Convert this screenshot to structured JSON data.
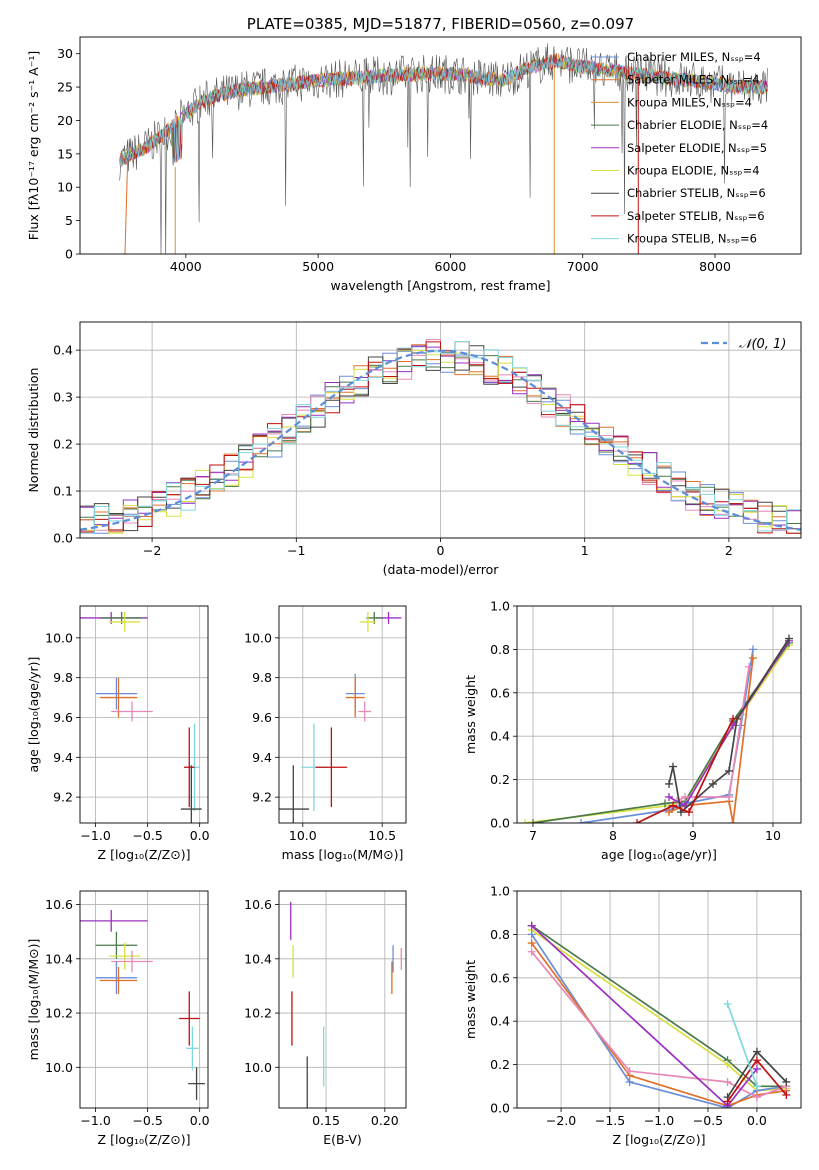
{
  "colors": {
    "chabrier_miles": "#6a8fd8",
    "salpeter_miles": "#e0702a",
    "kroupa_miles": "#d7902c",
    "chabrier_elodie": "#4a7a4a",
    "salpeter_elodie": "#9b30c0",
    "kroupa_elodie": "#d8e040",
    "chabrier_stelib": "#444444",
    "salpeter_stelib": "#c01010",
    "kroupa_stelib": "#80d8e0",
    "pink": "#e888b8",
    "normal_curve": "#5b8dd9"
  },
  "chart_data": [
    {
      "id": "spectrum",
      "type": "line",
      "title": "PLATE=0385, MJD=51877, FIBERID=0560, z=0.097",
      "xlabel": "wavelength [Angstrom, rest frame]",
      "ylabel": "Flux [fλ10⁻¹⁷ erg cm⁻² s⁻¹ A⁻¹]",
      "xlim": [
        3200,
        8650
      ],
      "ylim": [
        0,
        32.5
      ],
      "xticks": [
        "4000",
        "5000",
        "6000",
        "7000",
        "8000"
      ],
      "xtick_values": [
        4000,
        5000,
        6000,
        7000,
        8000
      ],
      "yticks": [
        "0",
        "5",
        "10",
        "15",
        "20",
        "25",
        "30"
      ],
      "ytick_values": [
        0,
        5,
        10,
        15,
        20,
        25,
        30
      ],
      "grid": false,
      "legend_position": "right",
      "legend": [
        "Chabrier MILES, Nₛₛₚ=4",
        "Salpeter MILES, Nₛₛₚ=4",
        "Kroupa MILES, Nₛₛₚ=4",
        "Chabrier ELODIE, Nₛₛₚ=4",
        "Salpeter ELODIE, Nₛₛₚ=5",
        "Kroupa ELODIE, Nₛₛₚ=4",
        "Chabrier STELIB, Nₛₛₚ=6",
        "Salpeter STELIB, Nₛₛₚ=6",
        "Kroupa STELIB, Nₛₛₚ=6"
      ],
      "continuum": {
        "x": [
          3500,
          3600,
          3700,
          3800,
          3900,
          4000,
          4100,
          4200,
          4400,
          4600,
          4800,
          5000,
          5200,
          5500,
          5800,
          6000,
          6200,
          6400,
          6600,
          6800,
          7000,
          7200,
          7400,
          7600,
          7800,
          8000,
          8200,
          8400
        ],
        "y": [
          14,
          15,
          16,
          17.5,
          19,
          21,
          22.5,
          23.5,
          24.5,
          25,
          25.5,
          26,
          26.3,
          26.7,
          27,
          27,
          26.5,
          26,
          28,
          29,
          28,
          27.5,
          27,
          26.5,
          26,
          25.5,
          25,
          25
        ]
      }
    },
    {
      "id": "residuals",
      "type": "histogram",
      "xlabel": "(data-model)/error",
      "ylabel": "Normed distribution",
      "xlim": [
        -2.5,
        2.5
      ],
      "ylim": [
        0,
        0.46
      ],
      "xticks": [
        "−2",
        "−1",
        "0",
        "1",
        "2"
      ],
      "xtick_values": [
        -2,
        -1,
        0,
        1,
        2
      ],
      "yticks": [
        "0.0",
        "0.1",
        "0.2",
        "0.3",
        "0.4"
      ],
      "ytick_values": [
        0,
        0.1,
        0.2,
        0.3,
        0.4
      ],
      "grid": true,
      "legend_position": "top-right",
      "legend": [
        "𝒩(0, 1)"
      ],
      "normal": {
        "mean": 0,
        "sigma": 1
      }
    },
    {
      "id": "age_vs_Z",
      "type": "scatter",
      "xlabel": "Z [log₁₀(Z/Z⊙)]",
      "ylabel": "age  [log₁₀(age/yr)]",
      "xlim": [
        -1.15,
        0.08
      ],
      "ylim": [
        9.07,
        10.16
      ],
      "xticks": [
        "−1.0",
        "−0.5",
        "0.0"
      ],
      "xtick_values": [
        -1.0,
        -0.5,
        0.0
      ],
      "yticks": [
        "9.2",
        "9.4",
        "9.6",
        "9.8",
        "10.0"
      ],
      "ytick_values": [
        9.2,
        9.4,
        9.6,
        9.8,
        10.0
      ],
      "grid": true,
      "points": [
        {
          "c": "salpeter_elodie",
          "x": -0.85,
          "y": 10.1,
          "xerr": 0.35,
          "yerr": 0.03
        },
        {
          "c": "chabrier_elodie",
          "x": -0.75,
          "y": 10.1,
          "xerr": 0.2,
          "yerr": 0.03
        },
        {
          "c": "kroupa_elodie",
          "x": -0.72,
          "y": 10.08,
          "xerr": 0.15,
          "yerr": 0.05
        },
        {
          "c": "chabrier_miles",
          "x": -0.8,
          "y": 9.72,
          "xerr": 0.2,
          "yerr": 0.08
        },
        {
          "c": "salpeter_miles",
          "x": -0.78,
          "y": 9.7,
          "xerr": 0.18,
          "yerr": 0.1
        },
        {
          "c": "pink",
          "x": -0.65,
          "y": 9.63,
          "xerr": 0.2,
          "yerr": 0.05
        },
        {
          "c": "kroupa_stelib",
          "x": -0.05,
          "y": 9.35,
          "xerr": 0.05,
          "yerr": 0.22
        },
        {
          "c": "salpeter_stelib",
          "x": -0.1,
          "y": 9.35,
          "xerr": 0.05,
          "yerr": 0.2
        },
        {
          "c": "chabrier_stelib",
          "x": -0.08,
          "y": 9.14,
          "xerr": 0.1,
          "yerr": 0.22
        }
      ]
    },
    {
      "id": "age_vs_mass",
      "type": "scatter",
      "xlabel": "mass [log₁₀(M/M⊙)]",
      "ylabel": "",
      "xlim": [
        9.85,
        10.65
      ],
      "ylim": [
        9.07,
        10.16
      ],
      "xticks": [
        "10.0",
        "10.5"
      ],
      "xtick_values": [
        10.0,
        10.5
      ],
      "yticks": [
        "9.2",
        "9.4",
        "9.6",
        "9.8",
        "10.0"
      ],
      "ytick_values": [
        9.2,
        9.4,
        9.6,
        9.8,
        10.0
      ],
      "grid": true,
      "points": [
        {
          "c": "salpeter_elodie",
          "x": 10.54,
          "y": 10.1,
          "xerr": 0.08,
          "yerr": 0.03
        },
        {
          "c": "chabrier_elodie",
          "x": 10.45,
          "y": 10.1,
          "xerr": 0.05,
          "yerr": 0.03
        },
        {
          "c": "kroupa_elodie",
          "x": 10.41,
          "y": 10.08,
          "xerr": 0.05,
          "yerr": 0.05
        },
        {
          "c": "chabrier_miles",
          "x": 10.33,
          "y": 9.72,
          "xerr": 0.06,
          "yerr": 0.1
        },
        {
          "c": "salpeter_miles",
          "x": 10.33,
          "y": 9.7,
          "xerr": 0.06,
          "yerr": 0.1
        },
        {
          "c": "pink",
          "x": 10.39,
          "y": 9.63,
          "xerr": 0.04,
          "yerr": 0.05
        },
        {
          "c": "kroupa_stelib",
          "x": 10.07,
          "y": 9.35,
          "xerr": 0.08,
          "yerr": 0.22
        },
        {
          "c": "salpeter_stelib",
          "x": 10.18,
          "y": 9.35,
          "xerr": 0.1,
          "yerr": 0.2
        },
        {
          "c": "chabrier_stelib",
          "x": 9.94,
          "y": 9.14,
          "xerr": 0.1,
          "yerr": 0.22
        }
      ]
    },
    {
      "id": "weight_vs_age",
      "type": "line",
      "xlabel": "age  [log₁₀(age/yr)]",
      "ylabel": "mass weight",
      "xlim": [
        6.8,
        10.35
      ],
      "ylim": [
        0,
        1.0
      ],
      "xticks": [
        "7",
        "8",
        "9",
        "10"
      ],
      "xtick_values": [
        7,
        8,
        9,
        10
      ],
      "yticks": [
        "0.0",
        "0.2",
        "0.4",
        "0.6",
        "0.8",
        "1.0"
      ],
      "ytick_values": [
        0,
        0.2,
        0.4,
        0.6,
        0.8,
        1.0
      ],
      "grid": true,
      "series": [
        {
          "c": "kroupa_elodie",
          "x": [
            6.9,
            8.7,
            8.9,
            9.6,
            10.2
          ],
          "y": [
            0.0,
            0.08,
            0.1,
            0.5,
            0.82
          ]
        },
        {
          "c": "chabrier_elodie",
          "x": [
            7.0,
            8.65,
            8.9,
            9.5,
            10.2
          ],
          "y": [
            0.0,
            0.09,
            0.1,
            0.47,
            0.83
          ]
        },
        {
          "c": "chabrier_miles",
          "x": [
            7.6,
            8.7,
            8.9,
            9.45,
            9.6,
            9.75
          ],
          "y": [
            0.0,
            0.06,
            0.09,
            0.13,
            0.45,
            0.8
          ]
        },
        {
          "c": "salpeter_miles",
          "x": [
            8.7,
            8.9,
            9.45,
            9.5,
            9.75
          ],
          "y": [
            0.05,
            0.08,
            0.1,
            0.0,
            0.76
          ]
        },
        {
          "c": "pink",
          "x": [
            8.8,
            8.9,
            9.45,
            9.7
          ],
          "y": [
            0.1,
            0.12,
            0.12,
            0.72
          ]
        },
        {
          "c": "salpeter_elodie",
          "x": [
            8.7,
            8.9,
            9.5,
            10.2
          ],
          "y": [
            0.12,
            0.08,
            0.45,
            0.84
          ]
        },
        {
          "c": "chabrier_stelib",
          "x": [
            8.7,
            8.75,
            8.85,
            9.25,
            9.45,
            9.55,
            10.2
          ],
          "y": [
            0.18,
            0.26,
            0.05,
            0.18,
            0.24,
            0.48,
            0.85
          ]
        },
        {
          "c": "salpeter_stelib",
          "x": [
            8.3,
            8.75,
            8.95,
            9.5
          ],
          "y": [
            0.0,
            0.08,
            0.05,
            0.48
          ]
        }
      ]
    },
    {
      "id": "mass_vs_Z",
      "type": "scatter",
      "xlabel": "Z [log₁₀(Z/Z⊙)]",
      "ylabel": "mass [log₁₀(M/M⊙)]",
      "xlim": [
        -1.15,
        0.08
      ],
      "ylim": [
        9.85,
        10.65
      ],
      "xticks": [
        "−1.0",
        "−0.5",
        "0.0"
      ],
      "xtick_values": [
        -1.0,
        -0.5,
        0.0
      ],
      "yticks": [
        "10.0",
        "10.2",
        "10.4",
        "10.6"
      ],
      "ytick_values": [
        10.0,
        10.2,
        10.4,
        10.6
      ],
      "grid": true,
      "points": [
        {
          "c": "salpeter_elodie",
          "x": -0.85,
          "y": 10.54,
          "xerr": 0.35,
          "yerr": 0.04
        },
        {
          "c": "chabrier_elodie",
          "x": -0.8,
          "y": 10.45,
          "xerr": 0.2,
          "yerr": 0.05
        },
        {
          "c": "kroupa_elodie",
          "x": -0.72,
          "y": 10.41,
          "xerr": 0.15,
          "yerr": 0.05
        },
        {
          "c": "pink",
          "x": -0.65,
          "y": 10.39,
          "xerr": 0.2,
          "yerr": 0.04
        },
        {
          "c": "chabrier_miles",
          "x": -0.8,
          "y": 10.33,
          "xerr": 0.2,
          "yerr": 0.06
        },
        {
          "c": "salpeter_miles",
          "x": -0.78,
          "y": 10.32,
          "xerr": 0.18,
          "yerr": 0.05
        },
        {
          "c": "salpeter_stelib",
          "x": -0.1,
          "y": 10.18,
          "xerr": 0.1,
          "yerr": 0.1
        },
        {
          "c": "kroupa_stelib",
          "x": -0.07,
          "y": 10.07,
          "xerr": 0.06,
          "yerr": 0.08
        },
        {
          "c": "chabrier_stelib",
          "x": -0.03,
          "y": 9.94,
          "xerr": 0.08,
          "yerr": 0.06
        }
      ]
    },
    {
      "id": "mass_vs_ebv",
      "type": "scatter",
      "xlabel": "E(B-V)",
      "ylabel": "",
      "xlim": [
        0.11,
        0.218
      ],
      "ylim": [
        9.85,
        10.65
      ],
      "xticks": [
        "0.15",
        "0.20"
      ],
      "xtick_values": [
        0.15,
        0.2
      ],
      "yticks": [
        "10.0",
        "10.2",
        "10.4",
        "10.6"
      ],
      "ytick_values": [
        10.0,
        10.2,
        10.4,
        10.6
      ],
      "grid": true,
      "points": [
        {
          "c": "salpeter_elodie",
          "x": 0.12,
          "y": 10.54,
          "xerr": 0,
          "yerr": 0.07
        },
        {
          "c": "kroupa_elodie",
          "x": 0.122,
          "y": 10.39,
          "xerr": 0,
          "yerr": 0.06
        },
        {
          "c": "salpeter_stelib",
          "x": 0.121,
          "y": 10.18,
          "xerr": 0,
          "yerr": 0.1
        },
        {
          "c": "chabrier_stelib",
          "x": 0.134,
          "y": 9.94,
          "xerr": 0,
          "yerr": 0.1
        },
        {
          "c": "kroupa_stelib",
          "x": 0.148,
          "y": 10.04,
          "xerr": 0,
          "yerr": 0.11
        },
        {
          "c": "chabrier_miles",
          "x": 0.207,
          "y": 10.4,
          "xerr": 0,
          "yerr": 0.05
        },
        {
          "c": "salpeter_miles",
          "x": 0.206,
          "y": 10.33,
          "xerr": 0,
          "yerr": 0.06
        },
        {
          "c": "pink",
          "x": 0.214,
          "y": 10.4,
          "xerr": 0,
          "yerr": 0.04
        }
      ]
    },
    {
      "id": "weight_vs_Z",
      "type": "line",
      "xlabel": "Z [log₁₀(Z/Z⊙)]",
      "ylabel": "mass weight",
      "xlim": [
        -2.45,
        0.45
      ],
      "ylim": [
        0,
        1.0
      ],
      "xticks": [
        "−2.0",
        "−1.5",
        "−1.0",
        "−0.5",
        "0.0"
      ],
      "xtick_values": [
        -2.0,
        -1.5,
        -1.0,
        -0.5,
        0.0
      ],
      "yticks": [
        "0.0",
        "0.2",
        "0.4",
        "0.6",
        "0.8",
        "1.0"
      ],
      "ytick_values": [
        0,
        0.2,
        0.4,
        0.6,
        0.8,
        1.0
      ],
      "grid": true,
      "series": [
        {
          "c": "chabrier_elodie",
          "x": [
            -2.3,
            -0.3,
            0.0,
            0.3
          ],
          "y": [
            0.84,
            0.22,
            0.1,
            0.1
          ]
        },
        {
          "c": "kroupa_elodie",
          "x": [
            -2.3,
            -0.3,
            0.0,
            0.3
          ],
          "y": [
            0.82,
            0.2,
            0.08,
            0.09
          ]
        },
        {
          "c": "chabrier_miles",
          "x": [
            -2.3,
            -1.3,
            -0.3,
            0.0,
            0.3
          ],
          "y": [
            0.8,
            0.12,
            0.0,
            0.08,
            0.1
          ]
        },
        {
          "c": "salpeter_miles",
          "x": [
            -2.3,
            -1.3,
            -0.3,
            0.0,
            0.3
          ],
          "y": [
            0.76,
            0.15,
            0.01,
            0.06,
            0.08
          ]
        },
        {
          "c": "pink",
          "x": [
            -2.3,
            -1.3,
            -0.3,
            0.0,
            0.3
          ],
          "y": [
            0.72,
            0.17,
            0.12,
            0.05,
            0.1
          ]
        },
        {
          "c": "salpeter_elodie",
          "x": [
            -2.3,
            -0.3,
            0.0
          ],
          "y": [
            0.84,
            0.01,
            0.18
          ]
        },
        {
          "c": "chabrier_stelib",
          "x": [
            -0.3,
            0.0,
            0.3
          ],
          "y": [
            0.05,
            0.26,
            0.12
          ]
        },
        {
          "c": "salpeter_stelib",
          "x": [
            -0.3,
            0.0,
            0.3
          ],
          "y": [
            0.03,
            0.22,
            0.06
          ]
        },
        {
          "c": "kroupa_stelib",
          "x": [
            -0.3,
            0.0
          ],
          "y": [
            0.48,
            0.1
          ]
        }
      ]
    }
  ]
}
